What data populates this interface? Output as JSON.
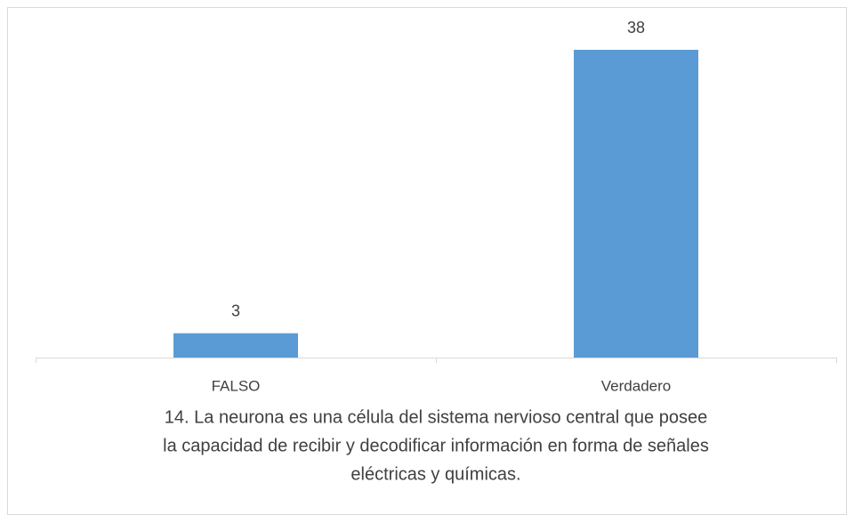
{
  "chart_data": {
    "type": "bar",
    "title": [
      "14. La neurona es una célula del sistema nervioso central que posee",
      "la capacidad de recibir y decodificar información en forma de señales",
      "eléctricas y químicas."
    ],
    "categories": [
      "FALSO",
      "Verdadero"
    ],
    "values": [
      3,
      38
    ],
    "color": "#5b9bd5"
  }
}
